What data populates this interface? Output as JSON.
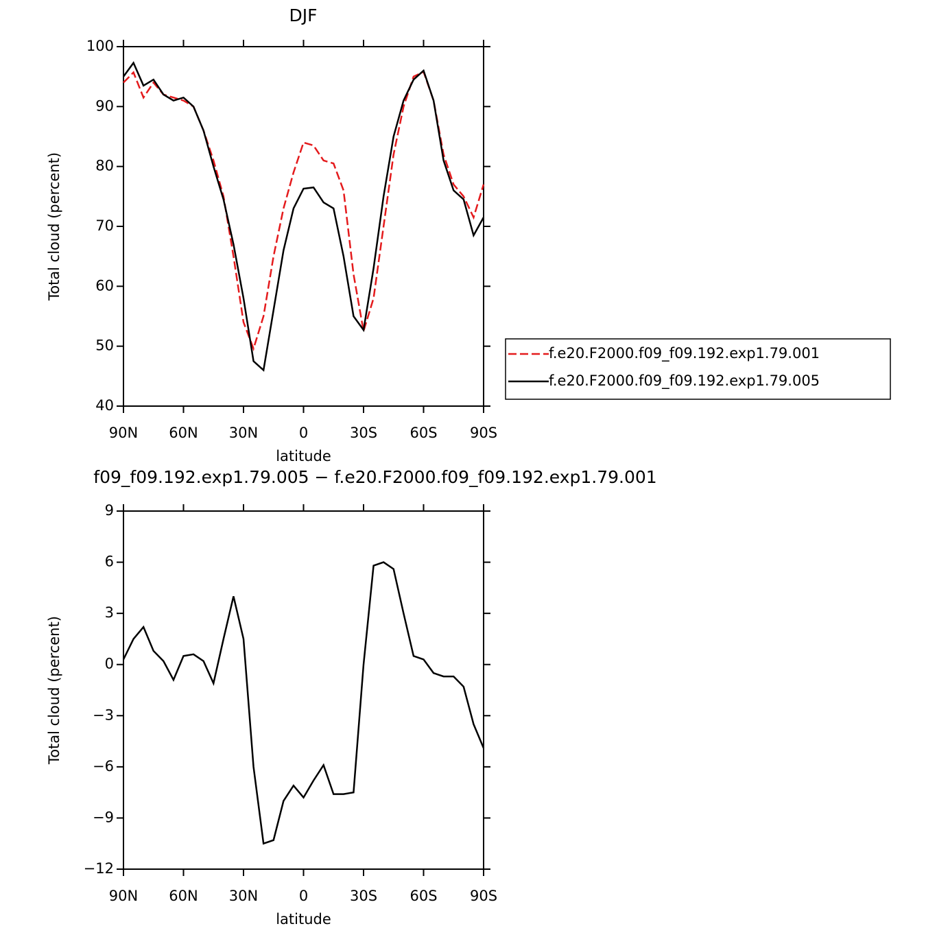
{
  "chart_data": [
    {
      "type": "line",
      "title": "DJF",
      "ylabel": "Total cloud (percent)",
      "xlabel": "latitude",
      "x": [
        90,
        85,
        80,
        75,
        70,
        65,
        60,
        55,
        50,
        45,
        40,
        35,
        30,
        25,
        20,
        15,
        10,
        5,
        0,
        -5,
        -10,
        -15,
        -20,
        -25,
        -30,
        -35,
        -40,
        -45,
        -50,
        -55,
        -60,
        -65,
        -70,
        -75,
        -80,
        -85,
        -90
      ],
      "xlim": [
        90,
        -90
      ],
      "xticks": [
        {
          "value": 90,
          "label": "90N"
        },
        {
          "value": 60,
          "label": "60N"
        },
        {
          "value": 30,
          "label": "30N"
        },
        0,
        {
          "value": -30,
          "label": "30S"
        },
        {
          "value": -60,
          "label": "60S"
        },
        {
          "value": -90,
          "label": "90S"
        }
      ],
      "ylim": [
        40,
        100
      ],
      "yticks": [
        40,
        50,
        60,
        70,
        80,
        90,
        100
      ],
      "series": [
        {
          "name": "f.e20.F2000.f09_f09.192.exp1.79.001",
          "color": "#e41a1c",
          "dashed": true,
          "values": [
            94,
            95.7,
            91.5,
            94,
            92,
            91.5,
            91,
            90,
            86,
            81,
            75,
            65,
            54,
            49.6,
            55,
            65,
            73,
            79,
            84,
            83.5,
            81,
            80.5,
            76,
            62,
            52.5,
            58,
            70,
            82,
            90,
            95,
            95.8,
            91,
            82,
            77,
            75,
            71.5,
            77
          ]
        },
        {
          "name": "f.e20.F2000.f09_f09.192.exp1.79.005",
          "color": "#000000",
          "dashed": false,
          "values": [
            95,
            97.3,
            93.5,
            94.5,
            92,
            91,
            91.5,
            90,
            86,
            80,
            74.5,
            67,
            58,
            47.5,
            46,
            56,
            66,
            73,
            76.3,
            76.5,
            74,
            73,
            65,
            55,
            52.7,
            63,
            75,
            85,
            91,
            94.5,
            96,
            91,
            81,
            76,
            74.5,
            68.5,
            71.5
          ]
        }
      ]
    },
    {
      "type": "line",
      "title": "f09_f09.192.exp1.79.005 − f.e20.F2000.f09_f09.192.exp1.79.001",
      "ylabel": "Total cloud (percent)",
      "xlabel": "latitude",
      "x": [
        90,
        85,
        80,
        75,
        70,
        65,
        60,
        55,
        50,
        45,
        40,
        35,
        30,
        25,
        20,
        15,
        10,
        5,
        0,
        -5,
        -10,
        -15,
        -20,
        -25,
        -30,
        -35,
        -40,
        -45,
        -50,
        -55,
        -60,
        -65,
        -70,
        -75,
        -80,
        -85,
        -90
      ],
      "xlim": [
        90,
        -90
      ],
      "xticks": [
        {
          "value": 90,
          "label": "90N"
        },
        {
          "value": 60,
          "label": "60N"
        },
        {
          "value": 30,
          "label": "30N"
        },
        0,
        {
          "value": -30,
          "label": "30S"
        },
        {
          "value": -60,
          "label": "60S"
        },
        {
          "value": -90,
          "label": "90S"
        }
      ],
      "ylim": [
        -12,
        9
      ],
      "yticks": [
        {
          "value": -12,
          "label": "−12"
        },
        {
          "value": -9,
          "label": "−9"
        },
        {
          "value": -6,
          "label": "−6"
        },
        {
          "value": -3,
          "label": "−3"
        },
        0,
        3,
        6,
        9
      ],
      "series": [
        {
          "color": "#000000",
          "dashed": false,
          "values": [
            0.3,
            1.5,
            2.2,
            0.8,
            0.2,
            -0.9,
            0.5,
            0.6,
            0.2,
            -1.1,
            1.5,
            4.0,
            1.5,
            -6,
            -10.5,
            -10.3,
            -8,
            -7.1,
            -7.8,
            -6.8,
            -5.9,
            -7.6,
            -7.6,
            -7.5,
            0,
            5.8,
            6.0,
            5.6,
            3,
            0.5,
            0.3,
            -0.5,
            -0.7,
            -0.7,
            -1.3,
            -3.5,
            -4.9
          ]
        }
      ]
    }
  ]
}
